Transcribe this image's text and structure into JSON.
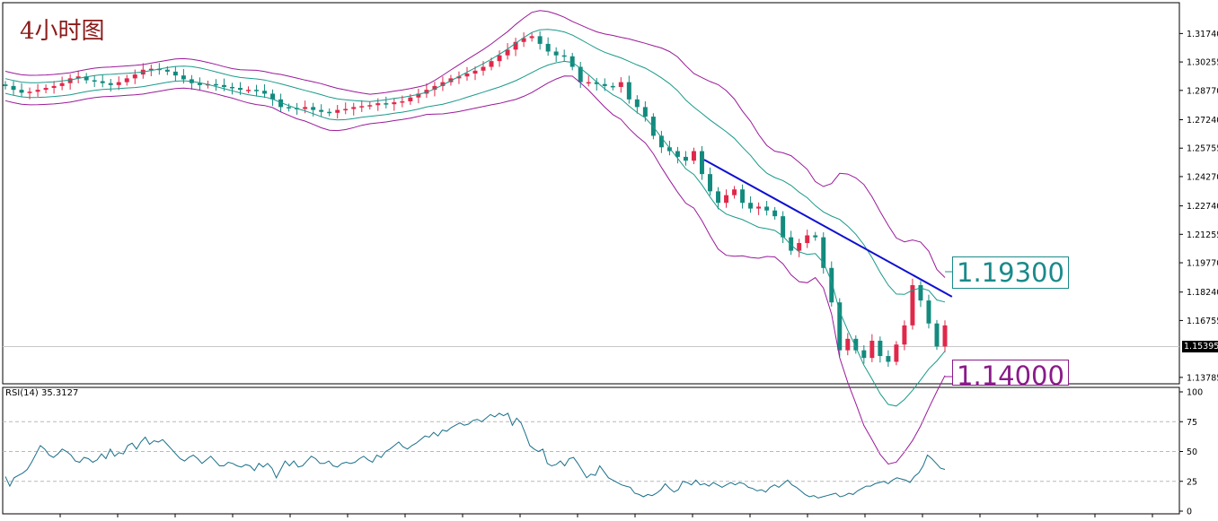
{
  "title": "4小时图",
  "rsi_label": "RSI(14) 35.3127",
  "callouts": {
    "upper": "1.19300",
    "lower": "1.14000"
  },
  "current_price": "1.15395",
  "colors": {
    "bull": "#e0284a",
    "bear": "#138a7e",
    "outer_band": "#9a1a9a",
    "inner_band": "#1a9a8a",
    "trendline": "#1010d0",
    "rsi_line": "#1a6f8a",
    "frame": "#000000"
  },
  "chart_data": [
    {
      "type": "candlestick",
      "title": "",
      "xlabel": "",
      "ylabel": "",
      "ylim": [
        1.1345,
        1.3335
      ],
      "y_ticks": [
        "1.31740",
        "1.30255",
        "1.28770",
        "1.27240",
        "1.25755",
        "1.24270",
        "1.22740",
        "1.21255",
        "1.19770",
        "1.18240",
        "1.16755",
        "1.15395",
        "1.13785"
      ],
      "overlays": [
        {
          "name": "",
          "kind": "outer-bollinger-bands"
        },
        {
          "name": "",
          "kind": "inner-bollinger-bands"
        },
        {
          "name": "",
          "kind": "trendline",
          "from": [
            0.595,
            1.2515
          ],
          "to": [
            0.806,
            1.18
          ]
        }
      ],
      "closes": [
        1.29,
        1.288,
        1.2865,
        1.287,
        1.288,
        1.289,
        1.29,
        1.2915,
        1.294,
        1.295,
        1.293,
        1.2925,
        1.2915,
        1.2905,
        1.292,
        1.294,
        1.296,
        1.2985,
        1.299,
        1.2985,
        1.2975,
        1.2955,
        1.2935,
        1.2915,
        1.2905,
        1.291,
        1.2905,
        1.2895,
        1.289,
        1.288,
        1.288,
        1.2875,
        1.286,
        1.283,
        1.279,
        1.2785,
        1.278,
        1.279,
        1.2775,
        1.2765,
        1.276,
        1.2775,
        1.278,
        1.279,
        1.2795,
        1.28,
        1.281,
        1.2805,
        1.2815,
        1.282,
        1.284,
        1.286,
        1.288,
        1.29,
        1.292,
        1.294,
        1.295,
        1.2965,
        1.298,
        1.3,
        1.303,
        1.306,
        1.309,
        1.313,
        1.315,
        1.316,
        1.312,
        1.308,
        1.306,
        1.3055,
        1.3,
        1.292,
        1.292,
        1.291,
        1.29,
        1.2895,
        1.292,
        1.283,
        1.279,
        1.274,
        1.264,
        1.258,
        1.256,
        1.253,
        1.251,
        1.256,
        1.244,
        1.235,
        1.229,
        1.233,
        1.236,
        1.229,
        1.226,
        1.227,
        1.225,
        1.222,
        1.211,
        1.204,
        1.208,
        1.212,
        1.211,
        1.195,
        1.177,
        1.152,
        1.158,
        1.152,
        1.148,
        1.157,
        1.149,
        1.146,
        1.155,
        1.165,
        1.186,
        1.178,
        1.166,
        1.154,
        1.165
      ],
      "panel": "price"
    },
    {
      "type": "line",
      "title": "RSI(14) 35.3127",
      "ylim": [
        0,
        100
      ],
      "y_ticks": [
        "100",
        "75",
        "50",
        "25",
        "0"
      ],
      "gridlines": [
        75,
        50,
        25
      ],
      "series": [
        {
          "name": "",
          "values": [
            29,
            21,
            28,
            30,
            32,
            35,
            41,
            48,
            55,
            52,
            47,
            45,
            48,
            52,
            50,
            47,
            42,
            41,
            45,
            44,
            41,
            43,
            48,
            44,
            52,
            46,
            49,
            48,
            55,
            57,
            52,
            58,
            62,
            56,
            59,
            58,
            60,
            56,
            52,
            48,
            44,
            42,
            45,
            47,
            44,
            40,
            43,
            46,
            42,
            38,
            38,
            41,
            40,
            38,
            37,
            39,
            38,
            34,
            40,
            37,
            40,
            36,
            28,
            35,
            42,
            38,
            42,
            37,
            38,
            42,
            46,
            44,
            40,
            40,
            42,
            38,
            37,
            40,
            41,
            40,
            41,
            44,
            46,
            43,
            41,
            47,
            45,
            50,
            52,
            55,
            58,
            54,
            52,
            55,
            57,
            60,
            63,
            62,
            66,
            63,
            68,
            67,
            70,
            72,
            74,
            72,
            73,
            76,
            77,
            75,
            78,
            81,
            79,
            82,
            80,
            82,
            72,
            78,
            74,
            65,
            55,
            52,
            50,
            52,
            40,
            38,
            39,
            42,
            38,
            44,
            45,
            40,
            34,
            28,
            31,
            30,
            38,
            33,
            28,
            26,
            24,
            22,
            21,
            20,
            15,
            14,
            12,
            14,
            13,
            15,
            18,
            23,
            19,
            16,
            18,
            25,
            24,
            22,
            26,
            22,
            23,
            21,
            24,
            22,
            20,
            22,
            24,
            22,
            24,
            23,
            20,
            19,
            17,
            18,
            16,
            20,
            22,
            20,
            23,
            26,
            22,
            20,
            17,
            14,
            12,
            13,
            11,
            12,
            13,
            14,
            15,
            12,
            13,
            15,
            14,
            17,
            19,
            21,
            21,
            23,
            24,
            25,
            23,
            26,
            28,
            27,
            26,
            24,
            29,
            32,
            38,
            47,
            44,
            40,
            36,
            35
          ]
        }
      ],
      "panel": "rsi"
    }
  ]
}
